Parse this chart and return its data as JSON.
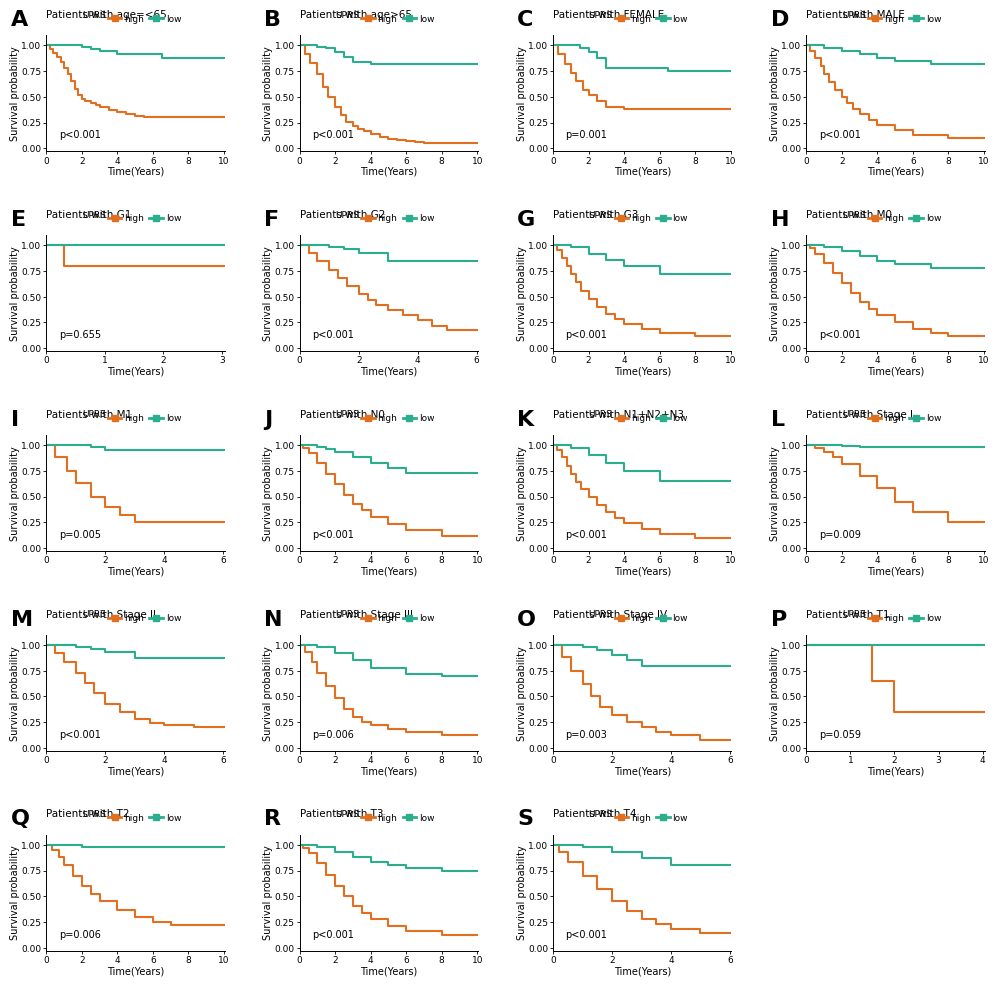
{
  "panels": [
    {
      "label": "A",
      "title": "Patients with age=<65",
      "pval": "p<0.001",
      "xmax": 10,
      "xticks": [
        0,
        2,
        4,
        6,
        8,
        10
      ],
      "high": {
        "x": [
          0,
          0.2,
          0.4,
          0.6,
          0.8,
          1.0,
          1.2,
          1.4,
          1.6,
          1.8,
          2.0,
          2.2,
          2.5,
          2.8,
          3.0,
          3.5,
          4.0,
          4.5,
          5.0,
          5.5,
          6.0,
          10.5
        ],
        "y": [
          1.0,
          0.97,
          0.93,
          0.89,
          0.84,
          0.78,
          0.72,
          0.65,
          0.58,
          0.52,
          0.48,
          0.46,
          0.44,
          0.42,
          0.4,
          0.37,
          0.35,
          0.33,
          0.31,
          0.3,
          0.3,
          0.3
        ]
      },
      "low": {
        "x": [
          0,
          0.8,
          1.5,
          2.0,
          2.5,
          3.0,
          4.0,
          6.5,
          10.5
        ],
        "y": [
          1.0,
          1.0,
          1.0,
          0.99,
          0.97,
          0.95,
          0.92,
          0.88,
          0.88
        ]
      }
    },
    {
      "label": "B",
      "title": "Patients with age>65",
      "pval": "p<0.001",
      "xmax": 10,
      "xticks": [
        0,
        2,
        4,
        6,
        8,
        10
      ],
      "high": {
        "x": [
          0,
          0.3,
          0.6,
          1.0,
          1.3,
          1.6,
          2.0,
          2.3,
          2.6,
          3.0,
          3.3,
          3.6,
          4.0,
          4.5,
          5.0,
          5.5,
          6.0,
          6.5,
          7.0,
          10.5
        ],
        "y": [
          1.0,
          0.92,
          0.83,
          0.72,
          0.6,
          0.5,
          0.4,
          0.32,
          0.26,
          0.22,
          0.19,
          0.17,
          0.14,
          0.11,
          0.09,
          0.08,
          0.07,
          0.06,
          0.05,
          0.05
        ]
      },
      "low": {
        "x": [
          0,
          0.5,
          1.0,
          1.5,
          2.0,
          2.5,
          3.0,
          4.0,
          7.5,
          10.5
        ],
        "y": [
          1.0,
          1.0,
          0.99,
          0.98,
          0.94,
          0.89,
          0.84,
          0.82,
          0.82,
          0.82
        ]
      }
    },
    {
      "label": "C",
      "title": "Patients with FEMALE",
      "pval": "p=0.001",
      "xmax": 10,
      "xticks": [
        0,
        2,
        4,
        6,
        8,
        10
      ],
      "high": {
        "x": [
          0,
          0.3,
          0.7,
          1.0,
          1.3,
          1.7,
          2.0,
          2.5,
          3.0,
          4.0,
          6.5,
          10.5
        ],
        "y": [
          1.0,
          0.92,
          0.82,
          0.73,
          0.65,
          0.57,
          0.52,
          0.46,
          0.4,
          0.38,
          0.38,
          0.38
        ]
      },
      "low": {
        "x": [
          0,
          0.5,
          1.0,
          1.5,
          2.0,
          2.5,
          3.0,
          6.5,
          10.5
        ],
        "y": [
          1.0,
          1.0,
          1.0,
          0.98,
          0.94,
          0.88,
          0.78,
          0.75,
          0.75
        ]
      }
    },
    {
      "label": "D",
      "title": "Patients with MALE",
      "pval": "p<0.001",
      "xmax": 10,
      "xticks": [
        0,
        2,
        4,
        6,
        8,
        10
      ],
      "high": {
        "x": [
          0,
          0.2,
          0.5,
          0.8,
          1.0,
          1.3,
          1.6,
          2.0,
          2.3,
          2.6,
          3.0,
          3.5,
          4.0,
          5.0,
          6.0,
          8.0,
          10.5
        ],
        "y": [
          1.0,
          0.95,
          0.88,
          0.8,
          0.72,
          0.64,
          0.57,
          0.5,
          0.44,
          0.38,
          0.33,
          0.28,
          0.23,
          0.18,
          0.13,
          0.1,
          0.08
        ]
      },
      "low": {
        "x": [
          0,
          0.5,
          1.0,
          2.0,
          3.0,
          4.0,
          5.0,
          7.0,
          10.5
        ],
        "y": [
          1.0,
          1.0,
          0.98,
          0.95,
          0.92,
          0.88,
          0.85,
          0.82,
          0.82
        ]
      }
    },
    {
      "label": "E",
      "title": "Patients with G1",
      "pval": "p=0.655",
      "xmax": 3,
      "xticks": [
        0,
        1,
        2,
        3
      ],
      "high": {
        "x": [
          0,
          0.3,
          3.5
        ],
        "y": [
          1.0,
          0.8,
          0.8
        ]
      },
      "low": {
        "x": [
          0,
          3.5
        ],
        "y": [
          1.0,
          1.0
        ]
      }
    },
    {
      "label": "F",
      "title": "Patients with G2",
      "pval": "p<0.001",
      "xmax": 6,
      "xticks": [
        0,
        2,
        4,
        6
      ],
      "high": {
        "x": [
          0,
          0.3,
          0.6,
          1.0,
          1.3,
          1.6,
          2.0,
          2.3,
          2.6,
          3.0,
          3.5,
          4.0,
          4.5,
          5.0,
          6.5
        ],
        "y": [
          1.0,
          0.93,
          0.85,
          0.76,
          0.68,
          0.6,
          0.53,
          0.47,
          0.42,
          0.37,
          0.32,
          0.27,
          0.22,
          0.18,
          0.15
        ]
      },
      "low": {
        "x": [
          0,
          0.5,
          1.0,
          1.5,
          2.0,
          3.0,
          6.5
        ],
        "y": [
          1.0,
          1.0,
          0.98,
          0.96,
          0.93,
          0.85,
          0.8
        ]
      }
    },
    {
      "label": "G",
      "title": "Patients with G3",
      "pval": "p<0.001",
      "xmax": 10,
      "xticks": [
        0,
        2,
        4,
        6,
        8,
        10
      ],
      "high": {
        "x": [
          0,
          0.2,
          0.5,
          0.8,
          1.0,
          1.3,
          1.6,
          2.0,
          2.5,
          3.0,
          3.5,
          4.0,
          5.0,
          6.0,
          8.0,
          10.5
        ],
        "y": [
          1.0,
          0.95,
          0.88,
          0.8,
          0.72,
          0.64,
          0.56,
          0.48,
          0.4,
          0.33,
          0.28,
          0.23,
          0.19,
          0.15,
          0.12,
          0.1
        ]
      },
      "low": {
        "x": [
          0,
          0.5,
          1.0,
          2.0,
          3.0,
          4.0,
          6.0,
          10.5
        ],
        "y": [
          1.0,
          1.0,
          0.98,
          0.92,
          0.86,
          0.8,
          0.72,
          0.68
        ]
      }
    },
    {
      "label": "H",
      "title": "Patients with M0",
      "pval": "p<0.001",
      "xmax": 10,
      "xticks": [
        0,
        2,
        4,
        6,
        8,
        10
      ],
      "high": {
        "x": [
          0,
          0.2,
          0.5,
          1.0,
          1.5,
          2.0,
          2.5,
          3.0,
          3.5,
          4.0,
          5.0,
          6.0,
          7.0,
          8.0,
          10.5
        ],
        "y": [
          1.0,
          0.97,
          0.92,
          0.83,
          0.73,
          0.63,
          0.54,
          0.45,
          0.38,
          0.32,
          0.25,
          0.19,
          0.15,
          0.12,
          0.1
        ]
      },
      "low": {
        "x": [
          0,
          0.5,
          1.0,
          2.0,
          3.0,
          4.0,
          5.0,
          7.0,
          10.5
        ],
        "y": [
          1.0,
          1.0,
          0.98,
          0.94,
          0.9,
          0.85,
          0.82,
          0.78,
          0.78
        ]
      }
    },
    {
      "label": "I",
      "title": "Patients with M1",
      "pval": "p=0.005",
      "xmax": 6,
      "xticks": [
        0,
        2,
        4,
        6
      ],
      "high": {
        "x": [
          0,
          0.3,
          0.7,
          1.0,
          1.5,
          2.0,
          2.5,
          3.0,
          6.5
        ],
        "y": [
          1.0,
          0.88,
          0.75,
          0.63,
          0.5,
          0.4,
          0.32,
          0.25,
          0.18
        ]
      },
      "low": {
        "x": [
          0,
          0.5,
          1.0,
          1.5,
          2.0,
          6.5
        ],
        "y": [
          1.0,
          1.0,
          1.0,
          0.98,
          0.95,
          0.9
        ]
      }
    },
    {
      "label": "J",
      "title": "Patients with N0",
      "pval": "p<0.001",
      "xmax": 10,
      "xticks": [
        0,
        2,
        4,
        6,
        8,
        10
      ],
      "high": {
        "x": [
          0,
          0.2,
          0.5,
          1.0,
          1.5,
          2.0,
          2.5,
          3.0,
          3.5,
          4.0,
          5.0,
          6.0,
          8.0,
          10.5
        ],
        "y": [
          1.0,
          0.97,
          0.92,
          0.83,
          0.72,
          0.62,
          0.52,
          0.43,
          0.37,
          0.3,
          0.23,
          0.17,
          0.12,
          0.1
        ]
      },
      "low": {
        "x": [
          0,
          0.5,
          1.0,
          1.5,
          2.0,
          3.0,
          4.0,
          5.0,
          6.0,
          10.5
        ],
        "y": [
          1.0,
          1.0,
          0.98,
          0.96,
          0.93,
          0.88,
          0.83,
          0.78,
          0.73,
          0.7
        ]
      }
    },
    {
      "label": "K",
      "title": "Patients with N1+N2+N3",
      "pval": "p<0.001",
      "xmax": 10,
      "xticks": [
        0,
        2,
        4,
        6,
        8,
        10
      ],
      "high": {
        "x": [
          0,
          0.2,
          0.5,
          0.8,
          1.0,
          1.3,
          1.6,
          2.0,
          2.5,
          3.0,
          3.5,
          4.0,
          5.0,
          6.0,
          8.0,
          10.5
        ],
        "y": [
          1.0,
          0.95,
          0.88,
          0.8,
          0.72,
          0.64,
          0.57,
          0.5,
          0.42,
          0.35,
          0.29,
          0.24,
          0.18,
          0.14,
          0.1,
          0.08
        ]
      },
      "low": {
        "x": [
          0,
          0.5,
          1.0,
          2.0,
          3.0,
          4.0,
          6.0,
          10.5
        ],
        "y": [
          1.0,
          1.0,
          0.97,
          0.9,
          0.83,
          0.75,
          0.65,
          0.6
        ]
      }
    },
    {
      "label": "L",
      "title": "Patients with Stage I",
      "pval": "p=0.009",
      "xmax": 10,
      "xticks": [
        0,
        2,
        4,
        6,
        8,
        10
      ],
      "high": {
        "x": [
          0,
          0.5,
          1.0,
          1.5,
          2.0,
          3.0,
          4.0,
          5.0,
          6.0,
          8.0,
          10.5
        ],
        "y": [
          1.0,
          0.97,
          0.93,
          0.88,
          0.82,
          0.7,
          0.58,
          0.45,
          0.35,
          0.25,
          0.2
        ]
      },
      "low": {
        "x": [
          0,
          1.0,
          2.0,
          3.0,
          10.5
        ],
        "y": [
          1.0,
          1.0,
          0.99,
          0.98,
          0.97
        ]
      }
    },
    {
      "label": "M",
      "title": "Patients with Stage II",
      "pval": "p<0.001",
      "xmax": 6,
      "xticks": [
        0,
        2,
        4,
        6
      ],
      "high": {
        "x": [
          0,
          0.3,
          0.6,
          1.0,
          1.3,
          1.6,
          2.0,
          2.5,
          3.0,
          3.5,
          4.0,
          5.0,
          6.5
        ],
        "y": [
          1.0,
          0.92,
          0.83,
          0.73,
          0.63,
          0.53,
          0.43,
          0.35,
          0.28,
          0.24,
          0.22,
          0.2,
          0.18
        ]
      },
      "low": {
        "x": [
          0,
          0.5,
          1.0,
          1.5,
          2.0,
          3.0,
          6.5
        ],
        "y": [
          1.0,
          1.0,
          0.98,
          0.96,
          0.93,
          0.87,
          0.83
        ]
      }
    },
    {
      "label": "N",
      "title": "Patients with Stage III",
      "pval": "p=0.006",
      "xmax": 10,
      "xticks": [
        0,
        2,
        4,
        6,
        8,
        10
      ],
      "high": {
        "x": [
          0,
          0.3,
          0.7,
          1.0,
          1.5,
          2.0,
          2.5,
          3.0,
          3.5,
          4.0,
          5.0,
          6.0,
          8.0,
          10.5
        ],
        "y": [
          1.0,
          0.93,
          0.83,
          0.73,
          0.6,
          0.48,
          0.38,
          0.3,
          0.25,
          0.22,
          0.18,
          0.15,
          0.12,
          0.1
        ]
      },
      "low": {
        "x": [
          0,
          0.5,
          1.0,
          2.0,
          3.0,
          4.0,
          6.0,
          8.0,
          10.5
        ],
        "y": [
          1.0,
          1.0,
          0.98,
          0.92,
          0.85,
          0.78,
          0.72,
          0.7,
          0.68
        ]
      }
    },
    {
      "label": "O",
      "title": "Patients with Stage IV",
      "pval": "p=0.003",
      "xmax": 6,
      "xticks": [
        0,
        2,
        4,
        6
      ],
      "high": {
        "x": [
          0,
          0.3,
          0.6,
          1.0,
          1.3,
          1.6,
          2.0,
          2.5,
          3.0,
          3.5,
          4.0,
          5.0,
          6.5
        ],
        "y": [
          1.0,
          0.88,
          0.75,
          0.62,
          0.5,
          0.4,
          0.32,
          0.25,
          0.2,
          0.15,
          0.12,
          0.08,
          0.05
        ]
      },
      "low": {
        "x": [
          0,
          0.5,
          1.0,
          1.5,
          2.0,
          2.5,
          3.0,
          6.5
        ],
        "y": [
          1.0,
          1.0,
          0.98,
          0.95,
          0.9,
          0.85,
          0.8,
          0.75
        ]
      }
    },
    {
      "label": "P",
      "title": "Patients with T1",
      "pval": "p=0.059",
      "xmax": 4,
      "xticks": [
        0,
        1,
        2,
        3,
        4
      ],
      "high": {
        "x": [
          0,
          1.0,
          1.5,
          2.0,
          4.5
        ],
        "y": [
          1.0,
          1.0,
          0.65,
          0.35,
          0.3
        ]
      },
      "low": {
        "x": [
          0,
          4.5
        ],
        "y": [
          1.0,
          1.0
        ]
      }
    },
    {
      "label": "Q",
      "title": "Patients with T2",
      "pval": "p=0.006",
      "xmax": 10,
      "xticks": [
        0,
        2,
        4,
        6,
        8,
        10
      ],
      "high": {
        "x": [
          0,
          0.3,
          0.7,
          1.0,
          1.5,
          2.0,
          2.5,
          3.0,
          4.0,
          5.0,
          6.0,
          7.0,
          10.5
        ],
        "y": [
          1.0,
          0.95,
          0.88,
          0.8,
          0.7,
          0.6,
          0.52,
          0.45,
          0.37,
          0.3,
          0.25,
          0.22,
          0.18
        ]
      },
      "low": {
        "x": [
          0,
          0.5,
          1.0,
          2.0,
          10.5
        ],
        "y": [
          1.0,
          1.0,
          1.0,
          0.98,
          0.97
        ]
      }
    },
    {
      "label": "R",
      "title": "Patients with T3",
      "pval": "p<0.001",
      "xmax": 10,
      "xticks": [
        0,
        2,
        4,
        6,
        8,
        10
      ],
      "high": {
        "x": [
          0,
          0.2,
          0.5,
          1.0,
          1.5,
          2.0,
          2.5,
          3.0,
          3.5,
          4.0,
          5.0,
          6.0,
          8.0,
          10.5
        ],
        "y": [
          1.0,
          0.97,
          0.92,
          0.82,
          0.71,
          0.6,
          0.5,
          0.41,
          0.34,
          0.28,
          0.21,
          0.16,
          0.12,
          0.1
        ]
      },
      "low": {
        "x": [
          0,
          0.5,
          1.0,
          2.0,
          3.0,
          4.0,
          5.0,
          6.0,
          8.0,
          10.5
        ],
        "y": [
          1.0,
          1.0,
          0.98,
          0.93,
          0.88,
          0.83,
          0.8,
          0.77,
          0.75,
          0.73
        ]
      }
    },
    {
      "label": "S",
      "title": "Patients with T4",
      "pval": "p<0.001",
      "xmax": 6,
      "xticks": [
        0,
        2,
        4,
        6
      ],
      "high": {
        "x": [
          0,
          0.2,
          0.5,
          1.0,
          1.5,
          2.0,
          2.5,
          3.0,
          3.5,
          4.0,
          5.0,
          6.5
        ],
        "y": [
          1.0,
          0.93,
          0.83,
          0.7,
          0.57,
          0.45,
          0.36,
          0.28,
          0.23,
          0.18,
          0.14,
          0.1
        ]
      },
      "low": {
        "x": [
          0,
          0.5,
          1.0,
          2.0,
          3.0,
          4.0,
          6.5
        ],
        "y": [
          1.0,
          1.0,
          0.98,
          0.93,
          0.87,
          0.8,
          0.75
        ]
      }
    }
  ],
  "color_high": "#E07020",
  "color_low": "#2BAE8E",
  "yticks": [
    0.0,
    0.25,
    0.5,
    0.75,
    1.0
  ],
  "ytick_labels": [
    "0.00",
    "0.25",
    "0.50",
    "0.75",
    "1.00"
  ],
  "ylabel": "Survival probability",
  "xlabel": "Time(Years)",
  "legend_label_high": "high",
  "legend_label_low": "low",
  "legend_label_uprs": "UPRS",
  "background_color": "#ffffff",
  "pval_fontsize": 7.0,
  "axis_label_fontsize": 7.0,
  "tick_fontsize": 6.5,
  "title_fontsize": 7.5,
  "panel_label_fontsize": 16,
  "legend_fontsize": 6.5,
  "line_width": 1.5
}
